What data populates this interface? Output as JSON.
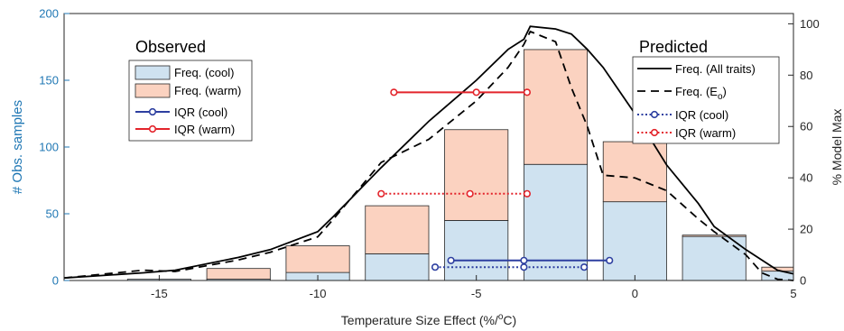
{
  "chart_data": {
    "type": "bar",
    "xlabel": "Temperature Size Effect (%/°C)",
    "xlabel_prefix": "Temperature Size Effect (%/",
    "xlabel_degree": "o",
    "xlabel_suffix": "C)",
    "ylabel_left": "# Obs. samples",
    "ylabel_right": "% Model Max",
    "xlim": [
      -18,
      5
    ],
    "ylim_left": [
      0,
      200
    ],
    "ylim_right": [
      0,
      104
    ],
    "x_ticks": [
      -15,
      -10,
      -5,
      0,
      5
    ],
    "y_left_ticks": [
      0,
      50,
      100,
      150,
      200
    ],
    "y_right_ticks": [
      0,
      20,
      40,
      60,
      80,
      100
    ],
    "bars": {
      "centers": [
        -15,
        -12.5,
        -10,
        -7.5,
        -5,
        -2.5,
        0,
        2.5,
        5
      ],
      "width": 2,
      "cool": [
        1,
        1,
        6,
        20,
        45,
        87,
        59,
        33,
        7
      ],
      "warm": [
        0,
        8,
        20,
        36,
        68,
        86,
        45,
        1,
        3
      ]
    },
    "lines_right_axis": {
      "x": [
        -18,
        -15.5,
        -14.5,
        -12.5,
        -11.5,
        -10,
        -9.5,
        -8,
        -6.5,
        -5,
        -4,
        -3.5,
        -3.3,
        -2.5,
        -2,
        -1.5,
        -1,
        0,
        1,
        2,
        2.5,
        3.5,
        4,
        4.5,
        5
      ],
      "all_traits": [
        1,
        3,
        4,
        9,
        12,
        19,
        25,
        44,
        62,
        78,
        90,
        94,
        99,
        98,
        96,
        90,
        83,
        65,
        45,
        30,
        21,
        12,
        8,
        4,
        2.6
      ],
      "e_o": [
        1,
        4,
        3.5,
        8,
        11,
        17,
        24,
        46,
        55,
        70,
        83,
        92,
        97,
        93,
        75,
        60,
        41,
        40,
        35,
        24,
        19,
        10,
        3,
        0.5,
        0
      ]
    },
    "iqr": {
      "observed_cool": {
        "low": -5.8,
        "median": -3.5,
        "high": -0.8,
        "y": 15
      },
      "observed_warm": {
        "low": -7.6,
        "median": -5.0,
        "high": -3.4,
        "y": 141
      },
      "predicted_cool": {
        "low": -6.3,
        "median": -3.5,
        "high": -1.6,
        "y": 10
      },
      "predicted_warm": {
        "low": -8.0,
        "median": -5.2,
        "high": -3.4,
        "y": 65
      }
    },
    "colors": {
      "cool_fill": "#cfe2f0",
      "warm_fill": "#fbd2c0",
      "iqr_cool": "#2d3fa0",
      "iqr_warm": "#e3242b",
      "left_axis": "#1f77b4",
      "line": "#000000"
    },
    "legend_observed": {
      "title": "Observed",
      "items": [
        "Freq. (cool)",
        "Freq. (warm)",
        "IQR (cool)",
        "IQR (warm)"
      ]
    },
    "legend_predicted": {
      "title": "Predicted",
      "items": [
        "Freq. (All traits)",
        "Freq. (E",
        "o",
        ")",
        "IQR (cool)",
        "IQR (warm)"
      ]
    }
  }
}
